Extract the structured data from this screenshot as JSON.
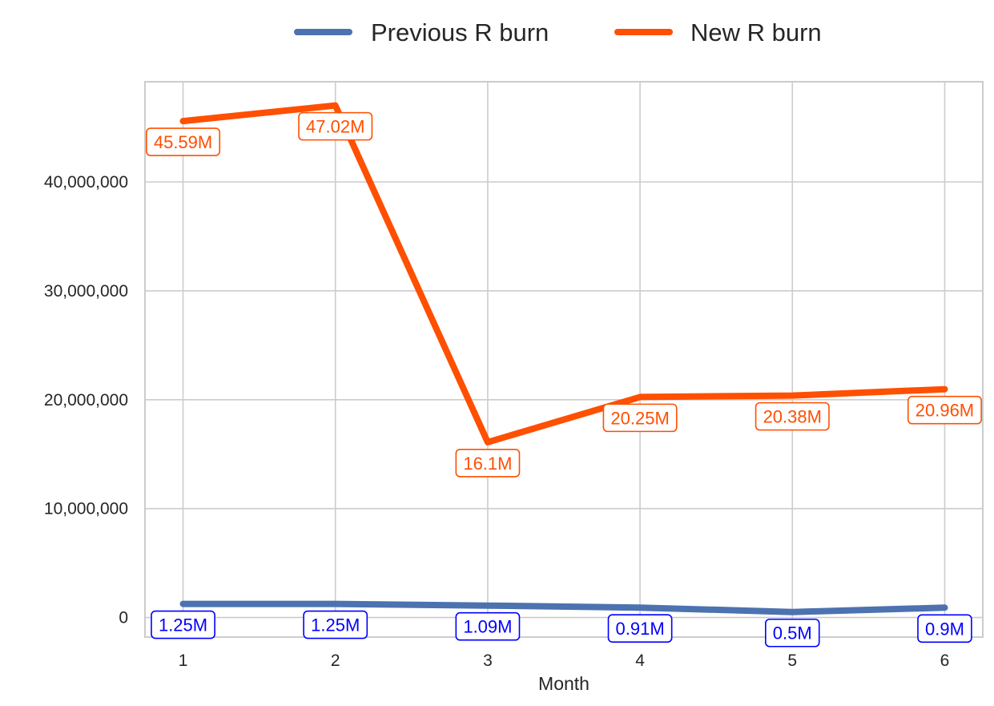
{
  "chart_data": {
    "type": "line",
    "title": "",
    "xlabel": "Month",
    "ylabel": "",
    "x": [
      1,
      2,
      3,
      4,
      5,
      6
    ],
    "x_ticks": [
      "1",
      "2",
      "3",
      "4",
      "5",
      "6"
    ],
    "y_ticks": [
      "0",
      "10,000,000",
      "20,000,000",
      "30,000,000",
      "40,000,000"
    ],
    "y_tick_values": [
      0,
      10000000,
      20000000,
      30000000,
      40000000
    ],
    "xlim": [
      0.75,
      6.25
    ],
    "ylim": [
      -1800000,
      49200000
    ],
    "grid": true,
    "legend_position": "top-center",
    "series": [
      {
        "name": "Previous R burn",
        "color": "#4c72b0",
        "label_color": "#0000ff",
        "values": [
          1250000,
          1250000,
          1090000,
          910000,
          500000,
          900000
        ],
        "labels": [
          "1.25M",
          "1.25M",
          "1.09M",
          "0.91M",
          "0.5M",
          "0.9M"
        ]
      },
      {
        "name": "New R burn",
        "color": "#ff4f00",
        "label_color": "#ff4f00",
        "values": [
          45590000,
          47020000,
          16100000,
          20250000,
          20380000,
          20960000
        ],
        "labels": [
          "45.59M",
          "47.02M",
          "16.1M",
          "20.25M",
          "20.38M",
          "20.96M"
        ]
      }
    ]
  }
}
